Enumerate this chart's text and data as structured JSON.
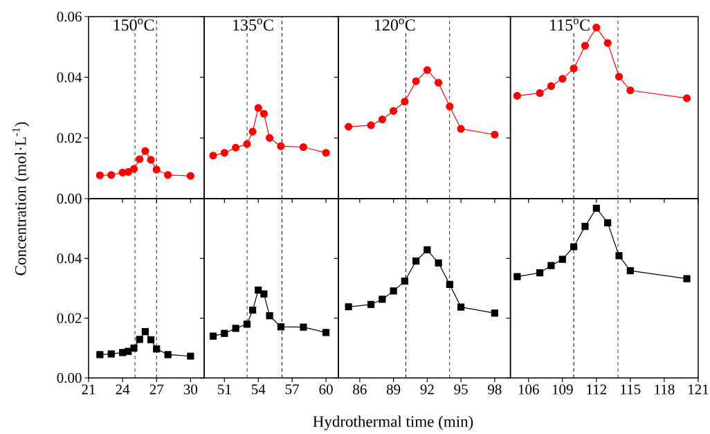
{
  "chart_data": [
    {
      "type": "line",
      "title": "150$^{o}$C",
      "ylabel": "Concentration (mol·L$^{-1}$)",
      "marker": "circle",
      "line_style": "solid",
      "x": [
        22,
        23,
        24,
        24.5,
        25,
        25.5,
        26,
        26.5,
        27,
        28,
        30
      ],
      "xlim": [
        21,
        31.2
      ],
      "xticks": [
        21,
        24,
        27,
        30
      ],
      "ylim": [
        0,
        0.06
      ],
      "yticks": [
        {
          "value": 0,
          "label": "0.00"
        },
        0.02,
        0.04,
        0.06
      ],
      "tick_labels": "y",
      "series": [
        {
          "color": "#ff0000",
          "values": [
            0.0077,
            0.0078,
            0.0086,
            0.0088,
            0.0098,
            0.013,
            0.0157,
            0.0128,
            0.0096,
            0.0078,
            0.0075
          ]
        }
      ],
      "ref_lines": [
        {
          "axis": "x",
          "value": 25.1,
          "color": "#000000",
          "line_style": "dashed"
        },
        {
          "axis": "x",
          "value": 27,
          "color": "#000000",
          "line_style": "dashed"
        }
      ]
    },
    {
      "type": "line",
      "title": "135$^{o}$C",
      "marker": "circle",
      "line_style": "solid",
      "x": [
        50,
        51,
        52,
        53,
        53.5,
        54,
        54.5,
        55,
        56,
        58,
        60
      ],
      "xlim": [
        49.2,
        61.1
      ],
      "xticks": [
        51,
        54,
        57,
        60
      ],
      "ylim": [
        0,
        0.06
      ],
      "yticks": [
        0,
        0.02,
        0.04,
        0.06
      ],
      "tick_labels": false,
      "series": [
        {
          "color": "#ff0000",
          "values": [
            0.0142,
            0.0151,
            0.0168,
            0.018,
            0.0221,
            0.0299,
            0.028,
            0.02,
            0.0173,
            0.017,
            0.0151
          ]
        }
      ],
      "ref_lines": [
        {
          "axis": "x",
          "value": 53,
          "color": "#000000",
          "line_style": "dashed"
        },
        {
          "axis": "x",
          "value": 56.1,
          "color": "#000000",
          "line_style": "dashed"
        }
      ]
    },
    {
      "type": "line",
      "title": "120$^{o}$C",
      "marker": "circle",
      "line_style": "solid",
      "x": [
        85,
        87,
        88,
        89,
        90,
        91,
        92,
        93,
        94,
        95,
        98
      ],
      "xlim": [
        84.1,
        99.4
      ],
      "xticks": [
        86,
        89,
        92,
        95,
        98
      ],
      "ylim": [
        0,
        0.06
      ],
      "yticks": [
        0,
        0.02,
        0.04,
        0.06
      ],
      "tick_labels": false,
      "series": [
        {
          "color": "#ff0000",
          "values": [
            0.0237,
            0.0242,
            0.0261,
            0.0289,
            0.032,
            0.0387,
            0.0424,
            0.0382,
            0.0304,
            0.023,
            0.0211
          ]
        }
      ],
      "ref_lines": [
        {
          "axis": "x",
          "value": 90.1,
          "color": "#000000",
          "line_style": "dashed"
        },
        {
          "axis": "x",
          "value": 94,
          "color": "#000000",
          "line_style": "dashed"
        }
      ]
    },
    {
      "type": "line",
      "title": "115$^{o}$C",
      "marker": "circle",
      "line_style": "solid",
      "x": [
        105,
        107,
        108,
        109,
        110,
        111,
        112,
        113,
        114,
        115,
        120
      ],
      "xlim": [
        104.4,
        121
      ],
      "xticks": [
        106,
        109,
        112,
        115,
        118,
        121
      ],
      "ylim": [
        0,
        0.06
      ],
      "yticks": [
        0,
        0.02,
        0.04,
        0.06
      ],
      "tick_labels": false,
      "series": [
        {
          "color": "#ff0000",
          "values": [
            0.0339,
            0.0348,
            0.0371,
            0.0395,
            0.0429,
            0.0504,
            0.0564,
            0.0513,
            0.0402,
            0.0357,
            0.0331
          ]
        }
      ],
      "ref_lines": [
        {
          "axis": "x",
          "value": 110,
          "color": "#000000",
          "line_style": "dashed"
        },
        {
          "axis": "x",
          "value": 113.9,
          "color": "#000000",
          "line_style": "dashed"
        }
      ]
    },
    {
      "type": "line",
      "marker": "square",
      "line_style": "solid",
      "x": [
        22,
        23,
        24,
        24.5,
        25,
        25.5,
        26,
        26.5,
        27,
        28,
        30
      ],
      "xlim": [
        21,
        31.2
      ],
      "xticks": [
        21,
        24,
        27,
        30
      ],
      "ylim": [
        0,
        0.06
      ],
      "yticks": [
        {
          "value": 0,
          "label": "0.00"
        },
        0.02,
        0.04
      ],
      "series": [
        {
          "color": "#000000",
          "values": [
            0.0078,
            0.008,
            0.0085,
            0.0089,
            0.01,
            0.0129,
            0.0155,
            0.0128,
            0.0097,
            0.0078,
            0.0073
          ]
        }
      ],
      "ref_lines": [
        {
          "axis": "x",
          "value": 25.1,
          "color": "#000000",
          "line_style": "dashed"
        },
        {
          "axis": "x",
          "value": 27,
          "color": "#000000",
          "line_style": "dashed"
        }
      ]
    },
    {
      "type": "line",
      "marker": "square",
      "line_style": "solid",
      "x": [
        50,
        51,
        52,
        53,
        53.5,
        54,
        54.5,
        55,
        56,
        58,
        60
      ],
      "xlim": [
        49.2,
        61.1
      ],
      "xticks": [
        51,
        54,
        57,
        60
      ],
      "ylim": [
        0,
        0.06
      ],
      "yticks": [
        0,
        0.02,
        0.04
      ],
      "tick_labels": "x",
      "series": [
        {
          "color": "#000000",
          "values": [
            0.014,
            0.0149,
            0.0166,
            0.018,
            0.0227,
            0.0294,
            0.0281,
            0.0208,
            0.0171,
            0.017,
            0.0152
          ]
        }
      ],
      "ref_lines": [
        {
          "axis": "x",
          "value": 53,
          "color": "#000000",
          "line_style": "dashed"
        },
        {
          "axis": "x",
          "value": 56.1,
          "color": "#000000",
          "line_style": "dashed"
        }
      ]
    },
    {
      "type": "line",
      "xlabel": "Hydrothermal time (min)",
      "marker": "square",
      "line_style": "solid",
      "x": [
        85,
        87,
        88,
        89,
        90,
        91,
        92,
        93,
        94,
        95,
        98
      ],
      "xlim": [
        84.1,
        99.4
      ],
      "xticks": [
        86,
        89,
        92,
        95,
        98
      ],
      "ylim": [
        0,
        0.06
      ],
      "yticks": [
        0,
        0.02,
        0.04
      ],
      "tick_labels": "x",
      "series": [
        {
          "color": "#000000",
          "values": [
            0.0238,
            0.0246,
            0.0263,
            0.0291,
            0.0324,
            0.0391,
            0.0429,
            0.0385,
            0.0313,
            0.0237,
            0.0217
          ]
        }
      ],
      "ref_lines": [
        {
          "axis": "x",
          "value": 90.1,
          "color": "#000000",
          "line_style": "dashed"
        },
        {
          "axis": "x",
          "value": 94,
          "color": "#000000",
          "line_style": "dashed"
        }
      ]
    },
    {
      "type": "line",
      "marker": "square",
      "line_style": "solid",
      "x": [
        105,
        107,
        108,
        109,
        110,
        111,
        112,
        113,
        114,
        115,
        120
      ],
      "xlim": [
        104.4,
        121
      ],
      "xticks": [
        106,
        109,
        112,
        115,
        118,
        121
      ],
      "ylim": [
        0,
        0.06
      ],
      "yticks": [
        0,
        0.02,
        0.04
      ],
      "tick_labels": "x",
      "series": [
        {
          "color": "#000000",
          "values": [
            0.0339,
            0.0352,
            0.0376,
            0.0397,
            0.0439,
            0.0507,
            0.0568,
            0.0519,
            0.0409,
            0.0359,
            0.0332
          ]
        }
      ],
      "ref_lines": [
        {
          "axis": "x",
          "value": 110,
          "color": "#000000",
          "line_style": "dashed"
        },
        {
          "axis": "x",
          "value": 113.9,
          "color": "#000000",
          "line_style": "dashed"
        }
      ]
    }
  ]
}
